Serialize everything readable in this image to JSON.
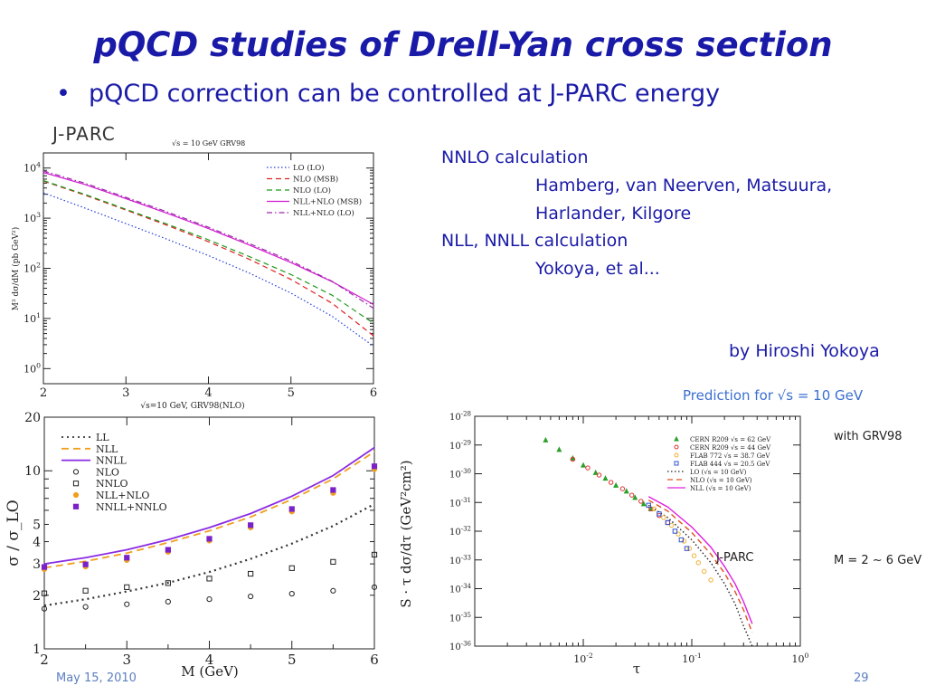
{
  "slide": {
    "title": "pQCD studies of Drell-Yan cross section",
    "bullet": "pQCD correction can be controlled at J-PARC energy",
    "date": "May 15, 2010",
    "page_number": "29"
  },
  "references": {
    "nnlo_heading": "NNLO calculation",
    "nnlo_authors_1": "Hamberg, van Neerven, Matsuura,",
    "nnlo_authors_2": "Harlander, Kilgore",
    "nll_heading": "NLL, NNLL calculation",
    "nll_authors": "Yokoya, et al...",
    "credit": "by Hiroshi Yokoya"
  },
  "chart_data": [
    {
      "type": "line",
      "id": "mass-spectrum",
      "corner_label": "J-PARC",
      "title": "√s = 10 GeV GRV98",
      "xlabel": "√s=10 GeV, GRV98(NLO)",
      "ylabel": "M³ dσ/dM (pb GeV²)",
      "xlim": [
        2,
        6
      ],
      "ylim": [
        0.5,
        20000
      ],
      "log_y": true,
      "x_ticks": [
        "2",
        "3",
        "4",
        "5",
        "6"
      ],
      "y_ticks": [
        {
          "base": "10",
          "exp": "0",
          "value": 1
        },
        {
          "base": "10",
          "exp": "1",
          "value": 10
        },
        {
          "base": "10",
          "exp": "2",
          "value": 100
        },
        {
          "base": "10",
          "exp": "3",
          "value": 1000
        },
        {
          "base": "10",
          "exp": "4",
          "value": 10000
        }
      ],
      "legend_position": "top-right",
      "x": [
        2,
        2.5,
        3,
        3.5,
        4,
        4.5,
        5,
        5.5,
        6
      ],
      "series": [
        {
          "name": "LO (LO)",
          "color": "#1f3bd8",
          "dash": "dotted",
          "values": [
            3200,
            1600,
            780,
            380,
            180,
            80,
            32,
            11,
            2.8
          ]
        },
        {
          "name": "NLO (MSB)",
          "color": "#e02020",
          "dash": "dashed",
          "values": [
            5500,
            2900,
            1450,
            720,
            340,
            150,
            60,
            20,
            4.5
          ]
        },
        {
          "name": "NLO (LO)",
          "color": "#1a9a1a",
          "dash": "dashed",
          "values": [
            5600,
            3000,
            1500,
            760,
            370,
            170,
            75,
            29,
            8.0
          ]
        },
        {
          "name": "NLL+NLO (MSB)",
          "color": "#d01ad0",
          "dash": "solid",
          "values": [
            8200,
            4700,
            2450,
            1250,
            620,
            290,
            130,
            54,
            19
          ]
        },
        {
          "name": "NLL+NLO (LO)",
          "color": "#9a2aa8",
          "dash": "dashdot",
          "values": [
            8800,
            5000,
            2600,
            1330,
            660,
            310,
            140,
            55,
            16
          ]
        }
      ]
    },
    {
      "type": "line",
      "id": "k-factor",
      "xlabel": "M (GeV)",
      "ylabel": "σ / σ_LO",
      "xlim": [
        2,
        6
      ],
      "ylim": [
        1,
        20
      ],
      "log_y": true,
      "x_ticks": [
        "2",
        "3",
        "4",
        "5",
        "6"
      ],
      "y_ticks": [
        {
          "label": "1",
          "value": 1
        },
        {
          "label": "2",
          "value": 2
        },
        {
          "label": "3",
          "value": 3
        },
        {
          "label": "4",
          "value": 4
        },
        {
          "label": "5",
          "value": 5
        },
        {
          "label": "10",
          "value": 10
        },
        {
          "label": "20",
          "value": 20
        }
      ],
      "legend_position": "top-left",
      "x": [
        2,
        2.5,
        3,
        3.5,
        4,
        4.5,
        5,
        5.5,
        6
      ],
      "series": [
        {
          "name": "LL",
          "color": "#333333",
          "style": "dotted",
          "values": [
            1.75,
            1.9,
            2.1,
            2.35,
            2.7,
            3.2,
            3.9,
            4.9,
            6.5
          ]
        },
        {
          "name": "NLL",
          "color": "#f0a020",
          "style": "dashed",
          "values": [
            2.85,
            3.1,
            3.45,
            3.95,
            4.6,
            5.5,
            6.9,
            9.0,
            12.8
          ]
        },
        {
          "name": "NNLL",
          "color": "#8a2be2",
          "style": "solid",
          "values": [
            3.0,
            3.25,
            3.6,
            4.1,
            4.8,
            5.75,
            7.2,
            9.4,
            13.5
          ]
        },
        {
          "name": "NLO",
          "color": "#222222",
          "marker": "circle",
          "values": [
            1.68,
            1.72,
            1.78,
            1.84,
            1.9,
            1.97,
            2.04,
            2.12,
            2.22
          ]
        },
        {
          "name": "NNLO",
          "color": "#222222",
          "marker": "square",
          "values": [
            2.05,
            2.12,
            2.22,
            2.34,
            2.48,
            2.64,
            2.84,
            3.08,
            3.38
          ]
        },
        {
          "name": "NLL+NLO",
          "color": "#f0a020",
          "marker": "filled-circle",
          "values": [
            2.8,
            2.9,
            3.15,
            3.5,
            4.05,
            4.8,
            5.9,
            7.5,
            10.2
          ]
        },
        {
          "name": "NNLL+NNLO",
          "color": "#7a22c8",
          "marker": "filled-square",
          "values": [
            2.88,
            2.98,
            3.25,
            3.6,
            4.15,
            4.95,
            6.1,
            7.8,
            10.6
          ]
        }
      ]
    },
    {
      "type": "scatter",
      "id": "scaling-cross-section",
      "title": "Prediction for √s = 10 GeV",
      "side_note": "with GRV98",
      "mass_note": "M = 2 ~ 6 GeV",
      "inner_label": "J-PARC",
      "xlabel": "τ",
      "ylabel": "S · τ dσ/dτ (GeV²cm²)",
      "xlim": [
        0.001,
        1
      ],
      "ylim": [
        1e-36,
        1e-28
      ],
      "log_x": true,
      "log_y": true,
      "x_ticks": [
        {
          "base": "10",
          "exp": "-2",
          "value": 0.01
        },
        {
          "base": "10",
          "exp": "-1",
          "value": 0.1
        },
        {
          "base": "10",
          "exp": "0",
          "value": 1
        }
      ],
      "y_ticks": [
        {
          "base": "10",
          "exp": "-28",
          "value": 1e-28
        },
        {
          "base": "10",
          "exp": "-29",
          "value": 1e-29
        },
        {
          "base": "10",
          "exp": "-30",
          "value": 1e-30
        },
        {
          "base": "10",
          "exp": "-31",
          "value": 1e-31
        },
        {
          "base": "10",
          "exp": "-32",
          "value": 1e-32
        },
        {
          "base": "10",
          "exp": "-33",
          "value": 1e-33
        },
        {
          "base": "10",
          "exp": "-34",
          "value": 1e-34
        },
        {
          "base": "10",
          "exp": "-35",
          "value": 1e-35
        },
        {
          "base": "10",
          "exp": "-36",
          "value": 1e-36
        }
      ],
      "legend_position": "top-right",
      "points": [
        {
          "name": "CERN R209 √s = 62 GeV",
          "color": "#2aa02a",
          "marker": "triangle",
          "x": [
            0.0045,
            0.006,
            0.008,
            0.01,
            0.013,
            0.016,
            0.02,
            0.025,
            0.03,
            0.036,
            0.042
          ],
          "y": [
            1.5e-29,
            7e-30,
            3.5e-30,
            2e-30,
            1.1e-30,
            7e-31,
            4e-31,
            2.5e-31,
            1.5e-31,
            9e-32,
            6e-32
          ]
        },
        {
          "name": "CERN R209 √s = 44 GeV",
          "color": "#e03030",
          "marker": "circle",
          "x": [
            0.008,
            0.011,
            0.014,
            0.018,
            0.023,
            0.028,
            0.034,
            0.042,
            0.05,
            0.06
          ],
          "y": [
            3.2e-30,
            1.6e-30,
            9e-31,
            5e-31,
            3e-31,
            1.8e-31,
            1.1e-31,
            6e-32,
            3.5e-32,
            2e-32
          ]
        },
        {
          "name": "FLAB 772 √s = 38.7 GeV",
          "color": "#f0b030",
          "marker": "circle",
          "x": [
            0.045,
            0.055,
            0.065,
            0.075,
            0.085,
            0.095,
            0.105,
            0.115,
            0.13,
            0.15
          ],
          "y": [
            6e-32,
            3e-32,
            1.6e-32,
            8e-33,
            4.5e-33,
            2.5e-33,
            1.4e-33,
            8e-34,
            4e-34,
            2e-34
          ]
        },
        {
          "name": "FLAB 444 √s = 20.5 GeV",
          "color": "#3050d0",
          "marker": "square",
          "x": [
            0.04,
            0.05,
            0.06,
            0.07,
            0.08,
            0.09
          ],
          "y": [
            8e-32,
            4e-32,
            2e-32,
            1e-32,
            5e-33,
            2.5e-33
          ]
        }
      ],
      "series": [
        {
          "name": "LO (√s = 10 GeV)",
          "color": "#222222",
          "style": "dotted",
          "x": [
            0.04,
            0.06,
            0.1,
            0.15,
            0.2,
            0.25,
            0.3,
            0.36
          ],
          "y": [
            8e-32,
            3e-32,
            5e-33,
            8e-34,
            1.5e-34,
            3e-35,
            5e-36,
            1e-36
          ]
        },
        {
          "name": "NLO (√s = 10 GeV)",
          "color": "#e05020",
          "style": "dashed",
          "x": [
            0.04,
            0.06,
            0.1,
            0.15,
            0.2,
            0.25,
            0.3,
            0.36
          ],
          "y": [
            1.2e-31,
            5e-32,
            9e-33,
            1.6e-33,
            3.5e-34,
            8e-35,
            1.8e-35,
            3e-36
          ]
        },
        {
          "name": "NLL (√s = 10 GeV)",
          "color": "#e020e0",
          "style": "solid",
          "x": [
            0.04,
            0.06,
            0.1,
            0.15,
            0.2,
            0.25,
            0.3,
            0.36
          ],
          "y": [
            1.6e-31,
            7e-32,
            1.4e-32,
            2.8e-33,
            6e-34,
            1.5e-34,
            3.5e-35,
            6e-36
          ]
        }
      ]
    }
  ]
}
